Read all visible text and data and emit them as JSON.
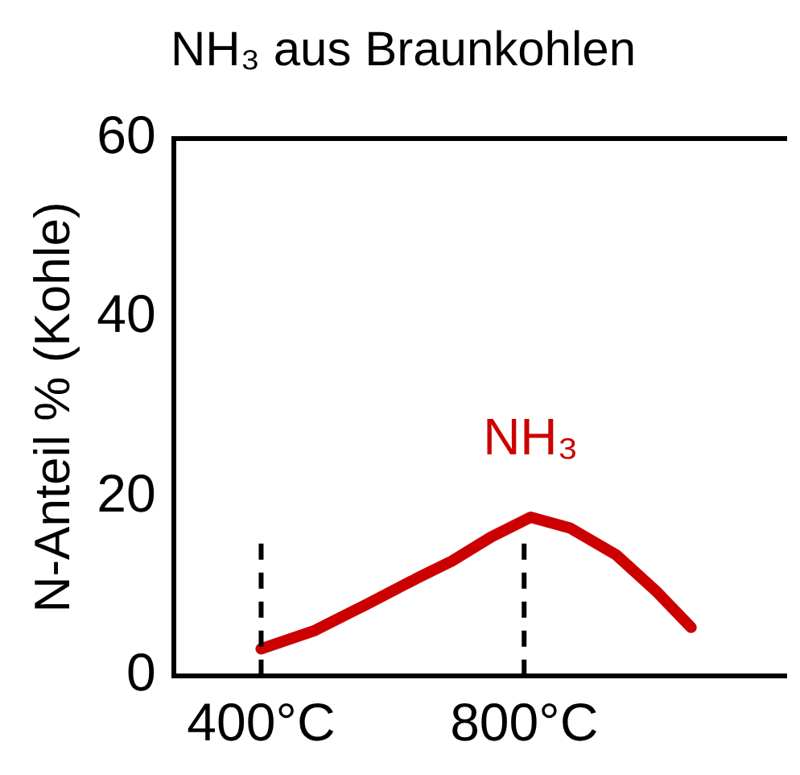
{
  "chart_data": {
    "type": "line",
    "title": "NH₃ aus Braunkohlen",
    "ylabel": "N-Anteil % (Kohle)",
    "x": [
      400,
      480,
      561,
      640,
      690,
      750,
      810,
      870,
      940,
      1000,
      1054
    ],
    "series": [
      {
        "name": "NH₃",
        "color": "#cc0000",
        "values": [
          3,
          5,
          8,
          11,
          12.8,
          15.5,
          17.7,
          16.5,
          13.5,
          9.5,
          5.4
        ]
      }
    ],
    "xlim": [
      267,
      1200
    ],
    "xticks": [
      {
        "value": 400,
        "label": "400°C"
      },
      {
        "value": 800,
        "label": "800°C"
      }
    ],
    "ylim": [
      0,
      60
    ],
    "yticks": [
      0,
      20,
      40,
      60
    ],
    "ref_lines": [
      {
        "axis": "x",
        "value": 400,
        "line_style": "dashed",
        "color": "#000000"
      },
      {
        "axis": "x",
        "value": 800,
        "line_style": "dashed",
        "color": "#000000"
      }
    ],
    "grid": false,
    "legend": false,
    "marker": "none",
    "line_style": "solid"
  }
}
